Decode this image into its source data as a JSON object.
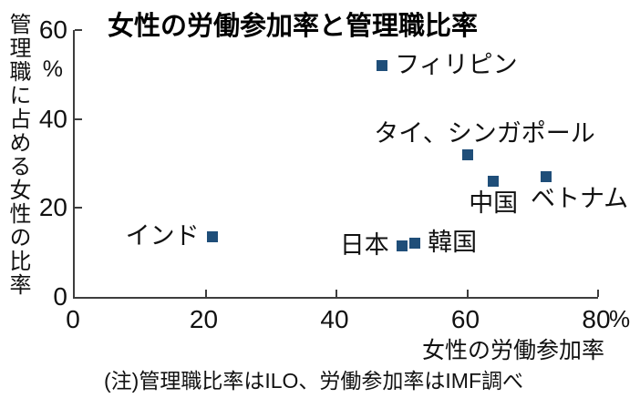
{
  "figure": {
    "background": "#ffffff",
    "text_color": "#111111",
    "axis_color": "#3d3d3d"
  },
  "chart_data": {
    "type": "scatter",
    "title": "女性の労働参加率と管理職比率",
    "xlabel": "女性の労働参加率",
    "ylabel": "管理職に占める女性の比率",
    "x_unit": "%",
    "y_unit": "%",
    "xlim": [
      0,
      80
    ],
    "ylim": [
      0,
      60
    ],
    "x_ticks": [
      0,
      20,
      40,
      60,
      80
    ],
    "y_ticks": [
      0,
      20,
      40,
      60
    ],
    "grid": false,
    "legend": "none",
    "marker": "square",
    "marker_color": "#1f4e79",
    "points": [
      {
        "id": "philippines",
        "label": "フィリピン",
        "x": 47,
        "y": 52,
        "label_side": "right"
      },
      {
        "id": "thailand-singapore",
        "label": "タイ、シンガポール",
        "x": 60,
        "y": 32,
        "label_side": "above",
        "label_dx": 19
      },
      {
        "id": "china",
        "label": "中国",
        "x": 64,
        "y": 26,
        "label_side": "below",
        "label_dx": 0
      },
      {
        "id": "vietnam",
        "label": "ベトナム",
        "x": 72,
        "y": 27,
        "label_side": "below",
        "label_dx": 37
      },
      {
        "id": "japan",
        "label": "日本",
        "x": 50,
        "y": 11.5,
        "label_side": "left"
      },
      {
        "id": "korea",
        "label": "韓国",
        "x": 52,
        "y": 12,
        "label_side": "right"
      },
      {
        "id": "india",
        "label": "インド",
        "x": 21,
        "y": 13.5,
        "label_side": "left"
      }
    ],
    "note": "(注)管理職比率はILO、労働参加率はIMF調べ"
  }
}
